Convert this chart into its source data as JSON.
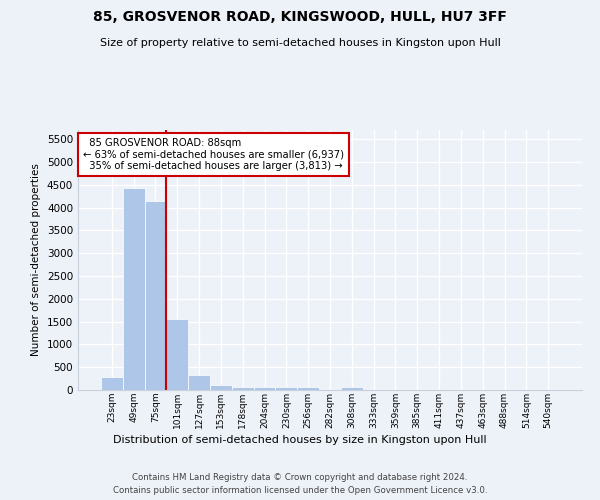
{
  "title": "85, GROSVENOR ROAD, KINGSWOOD, HULL, HU7 3FF",
  "subtitle": "Size of property relative to semi-detached houses in Kingston upon Hull",
  "xlabel": "Distribution of semi-detached houses by size in Kingston upon Hull",
  "ylabel": "Number of semi-detached properties",
  "categories": [
    "23sqm",
    "49sqm",
    "75sqm",
    "101sqm",
    "127sqm",
    "153sqm",
    "178sqm",
    "204sqm",
    "230sqm",
    "256sqm",
    "282sqm",
    "308sqm",
    "333sqm",
    "359sqm",
    "385sqm",
    "411sqm",
    "437sqm",
    "463sqm",
    "488sqm",
    "514sqm",
    "540sqm"
  ],
  "values": [
    280,
    4420,
    4150,
    1550,
    330,
    120,
    75,
    65,
    55,
    55,
    0,
    55,
    0,
    0,
    0,
    0,
    0,
    0,
    0,
    0,
    0
  ],
  "bar_color": "#aec6e8",
  "property_label": "85 GROSVENOR ROAD: 88sqm",
  "pct_smaller": 63,
  "n_smaller": 6937,
  "pct_larger": 35,
  "n_larger": 3813,
  "annotation_box_color": "#cc0000",
  "vline_color": "#cc0000",
  "ylim": [
    0,
    5700
  ],
  "yticks": [
    0,
    500,
    1000,
    1500,
    2000,
    2500,
    3000,
    3500,
    4000,
    4500,
    5000,
    5500
  ],
  "background_color": "#edf1f8",
  "grid_color": "#ffffff",
  "footer1": "Contains HM Land Registry data © Crown copyright and database right 2024.",
  "footer2": "Contains public sector information licensed under the Open Government Licence v3.0."
}
